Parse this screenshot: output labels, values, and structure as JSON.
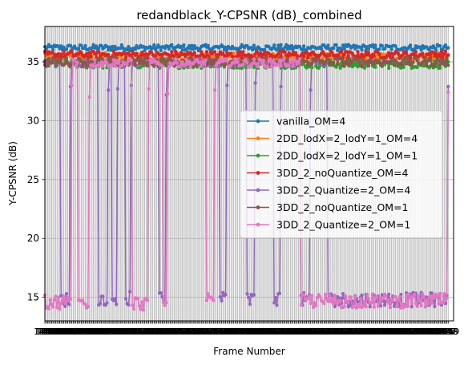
{
  "chart_data": {
    "type": "line",
    "title": "redandblack_Y-CPSNR (dB)_combined",
    "xlabel": "Frame Number",
    "ylabel": "Y-CPSNR (dB)",
    "xlim": [
      1450,
      1753
    ],
    "ylim": [
      13.0,
      38.0
    ],
    "yticks": [
      15,
      20,
      25,
      30,
      35
    ],
    "xtick_start": 1450,
    "xtick_end": 1749,
    "xtick_step": 1,
    "grid": true,
    "legend_position": "center-right",
    "series": [
      {
        "name": "vanilla_OM=4",
        "color": "#1f77b4",
        "base": 36.2,
        "noise": 0.25,
        "drops": []
      },
      {
        "name": "2DD_lodX=2_lodY=1_OM=4",
        "color": "#ff7f0e",
        "base": 35.4,
        "noise": 0.35,
        "drops": []
      },
      {
        "name": "2DD_lodX=2_lodY=1_OM=1",
        "color": "#2ca02c",
        "base": 34.8,
        "noise": 0.35,
        "drops": []
      },
      {
        "name": "3DD_2_noQuantize_OM=4",
        "color": "#d62728",
        "base": 35.6,
        "noise": 0.3,
        "drops": []
      },
      {
        "name": "3DD_2_Quantize=2_OM=4",
        "color": "#9467bd",
        "base": 34.9,
        "noise": 0.35,
        "drops": [
          {
            "start": 1462,
            "end": 1469,
            "low": 14.8,
            "jump": 32.9
          },
          {
            "start": 1490,
            "end": 1497,
            "low": 14.9,
            "jump": 32.6
          },
          {
            "start": 1500,
            "end": 1504,
            "low": 14.8,
            "jump": 32.7
          },
          {
            "start": 1510,
            "end": 1514,
            "low": 14.9,
            "jump": 33.0
          },
          {
            "start": 1535,
            "end": 1540,
            "low": 14.8,
            "jump": 32.2
          },
          {
            "start": 1580,
            "end": 1585,
            "low": 14.8,
            "jump": 33.0
          },
          {
            "start": 1600,
            "end": 1606,
            "low": 15.0,
            "jump": 33.2
          },
          {
            "start": 1620,
            "end": 1625,
            "low": 14.9,
            "jump": 32.9
          },
          {
            "start": 1640,
            "end": 1647,
            "low": 14.8,
            "jump": 32.6
          },
          {
            "start": 1660,
            "end": 1749,
            "low": 14.8,
            "jump": 32.9
          }
        ]
      },
      {
        "name": "3DD_2_noQuantize_OM=1",
        "color": "#8c564b",
        "base": 35.0,
        "noise": 0.35,
        "drops": []
      },
      {
        "name": "3DD_2_Quantize=2_OM=1",
        "color": "#e377c2",
        "base": 34.9,
        "noise": 0.35,
        "drops": [
          {
            "start": 1450,
            "end": 1470,
            "low": 14.6,
            "jump": 33.0
          },
          {
            "start": 1475,
            "end": 1483,
            "low": 14.6,
            "jump": 32.0
          },
          {
            "start": 1515,
            "end": 1527,
            "low": 14.5,
            "jump": 32.7
          },
          {
            "start": 1538,
            "end": 1541,
            "low": 14.7,
            "jump": 32.3
          },
          {
            "start": 1570,
            "end": 1576,
            "low": 14.7,
            "jump": 32.6
          },
          {
            "start": 1640,
            "end": 1749,
            "low": 14.7,
            "jump": 32.4
          }
        ]
      }
    ]
  }
}
